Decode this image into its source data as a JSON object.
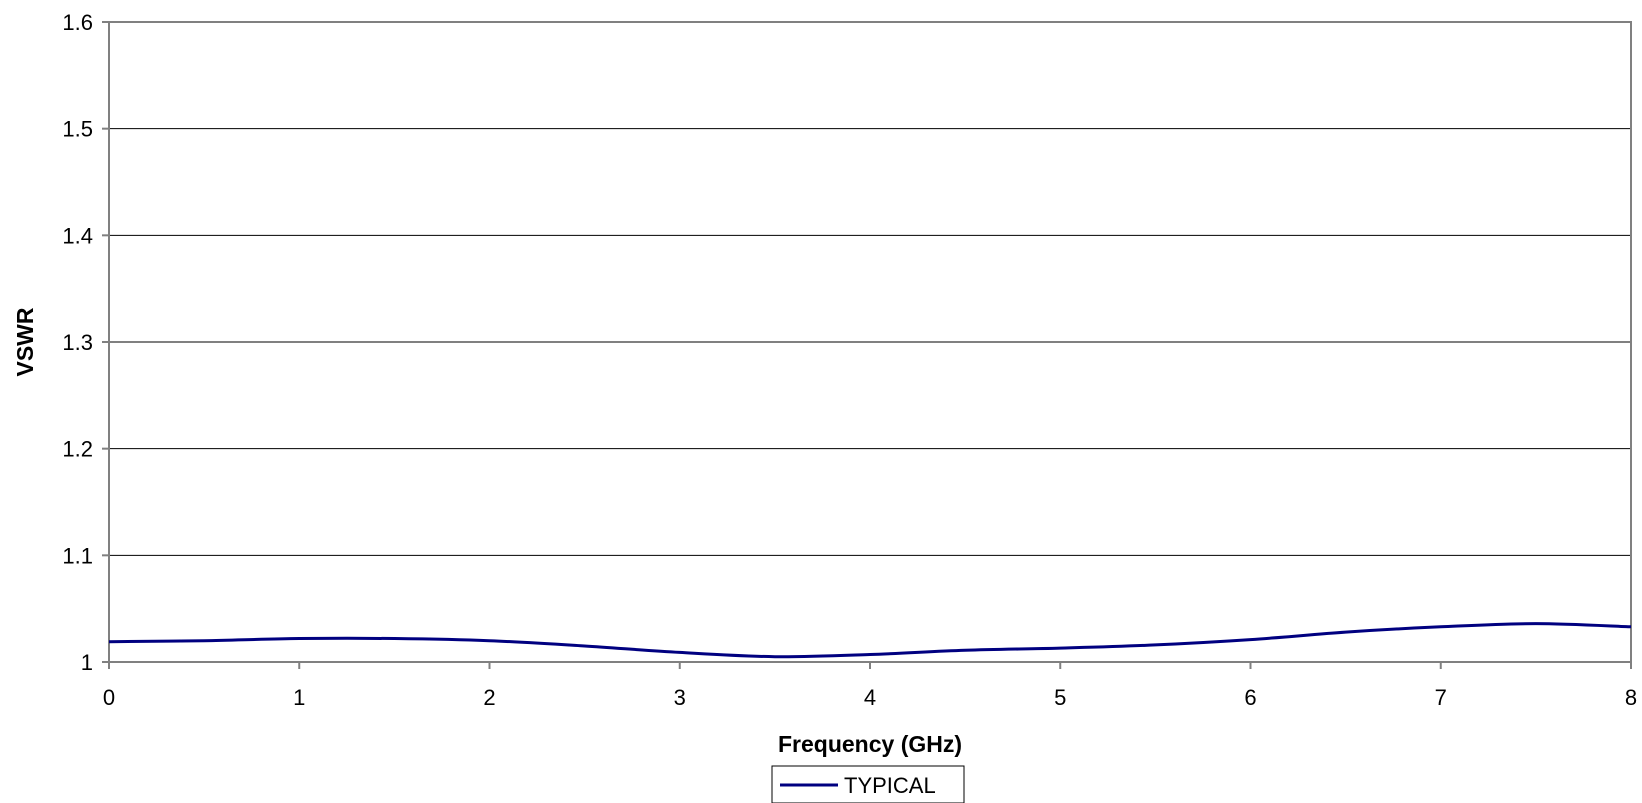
{
  "chart_data": {
    "type": "line",
    "title": "",
    "xlabel": "Frequency (GHz)",
    "ylabel": "VSWR",
    "xlim": [
      0,
      8
    ],
    "ylim": [
      1,
      1.6
    ],
    "xticks": [
      "0",
      "1",
      "2",
      "3",
      "4",
      "5",
      "6",
      "7",
      "8"
    ],
    "yticks": [
      "1",
      "1.1",
      "1.2",
      "1.3",
      "1.4",
      "1.5",
      "1.6"
    ],
    "grid": "horizontal",
    "legend": "bottom-center",
    "series": [
      {
        "name": "TYPICAL",
        "color": "#000080",
        "x": [
          0,
          0.5,
          1,
          1.5,
          2,
          2.5,
          3,
          3.5,
          4,
          4.5,
          5,
          5.5,
          6,
          6.5,
          7,
          7.5,
          8
        ],
        "y": [
          1.019,
          1.02,
          1.022,
          1.022,
          1.02,
          1.015,
          1.009,
          1.005,
          1.007,
          1.011,
          1.013,
          1.016,
          1.021,
          1.028,
          1.033,
          1.036,
          1.033
        ]
      }
    ]
  }
}
